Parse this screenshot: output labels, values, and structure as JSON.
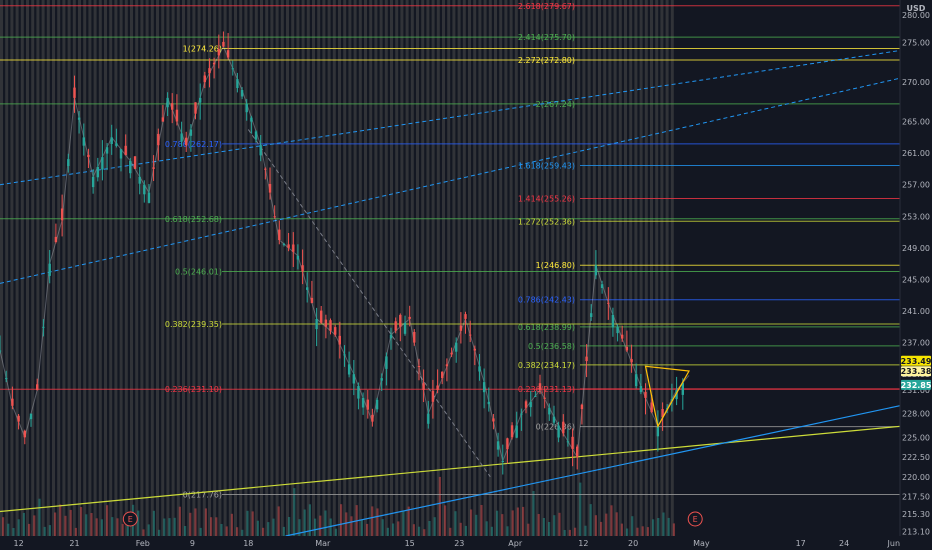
{
  "currency": "USD",
  "corner_label": "280.00",
  "earnings_markers": [
    {
      "label": "E",
      "date": "2024-01-30"
    },
    {
      "label": "E",
      "date": "2024-04-30"
    }
  ],
  "price_badges": [
    {
      "value": "233.49",
      "bg": "#f7e600",
      "fg": "#131722"
    },
    {
      "value": "233.38",
      "bg": "#fff59d",
      "fg": "#131722"
    },
    {
      "value": "232.85",
      "bg": "#26a69a",
      "fg": "#ffffff"
    }
  ],
  "chart_data": {
    "type": "line",
    "title": "",
    "xlabel": "",
    "ylabel": "",
    "currency": "USD",
    "ylim": [
      212.5,
      280.4
    ],
    "xlim": [
      "2024-01-09",
      "2024-06-02"
    ],
    "x_tick_labels": [
      {
        "label": "12",
        "date": "2024-01-12"
      },
      {
        "label": "21",
        "date": "2024-01-21"
      },
      {
        "label": "Feb",
        "date": "2024-02-01"
      },
      {
        "label": "9",
        "date": "2024-02-09"
      },
      {
        "label": "18",
        "date": "2024-02-18"
      },
      {
        "label": "Mar",
        "date": "2024-03-01"
      },
      {
        "label": "15",
        "date": "2024-03-15"
      },
      {
        "label": "23",
        "date": "2024-03-23"
      },
      {
        "label": "Apr",
        "date": "2024-04-01"
      },
      {
        "label": "12",
        "date": "2024-04-12"
      },
      {
        "label": "20",
        "date": "2024-04-20"
      },
      {
        "label": "May",
        "date": "2024-05-01"
      },
      {
        "label": "17",
        "date": "2024-05-17"
      },
      {
        "label": "24",
        "date": "2024-05-24"
      },
      {
        "label": "Jun",
        "date": "2024-06-01"
      }
    ],
    "y_tick_labels": [
      213.1,
      215.3,
      217.5,
      220.0,
      222.5,
      225.0,
      228.0,
      231.0,
      233.0,
      237.0,
      241.0,
      245.0,
      249.0,
      253.0,
      257.0,
      261.0,
      265.0,
      270.0,
      275.0
    ],
    "price_series": {
      "name": "",
      "points": [
        [
          "2024-01-09",
          236.0
        ],
        [
          "2024-01-11",
          229.0
        ],
        [
          "2024-01-13",
          225.0
        ],
        [
          "2024-01-15",
          231.0
        ],
        [
          "2024-01-17",
          247.0
        ],
        [
          "2024-01-19",
          252.5
        ],
        [
          "2024-01-21",
          268.0
        ],
        [
          "2024-01-24",
          258.0
        ],
        [
          "2024-01-27",
          263.0
        ],
        [
          "2024-01-30",
          260.0
        ],
        [
          "2024-02-02",
          256.0
        ],
        [
          "2024-02-05",
          268.0
        ],
        [
          "2024-02-08",
          262.0
        ],
        [
          "2024-02-11",
          270.0
        ],
        [
          "2024-02-14",
          274.5
        ],
        [
          "2024-02-17",
          269.0
        ],
        [
          "2024-02-20",
          262.0
        ],
        [
          "2024-02-23",
          250.0
        ],
        [
          "2024-02-26",
          248.0
        ],
        [
          "2024-02-29",
          240.0
        ],
        [
          "2024-03-03",
          238.0
        ],
        [
          "2024-03-06",
          233.0
        ],
        [
          "2024-03-09",
          227.0
        ],
        [
          "2024-03-12",
          238.0
        ],
        [
          "2024-03-15",
          240.0
        ],
        [
          "2024-03-18",
          228.0
        ],
        [
          "2024-03-21",
          234.0
        ],
        [
          "2024-03-24",
          240.0
        ],
        [
          "2024-03-27",
          232.0
        ],
        [
          "2024-03-30",
          222.0
        ],
        [
          "2024-04-02",
          228.0
        ],
        [
          "2024-04-05",
          231.0
        ],
        [
          "2024-04-08",
          226.5
        ],
        [
          "2024-04-11",
          222.5
        ],
        [
          "2024-04-14",
          246.8
        ],
        [
          "2024-04-16",
          242.0
        ],
        [
          "2024-04-19",
          236.0
        ],
        [
          "2024-04-22",
          230.0
        ],
        [
          "2024-04-24",
          226.4
        ],
        [
          "2024-04-27",
          231.0
        ],
        [
          "2024-04-29",
          232.85
        ]
      ]
    },
    "horizontal_levels": [
      {
        "label": "2.618(279.67)",
        "value": 279.67,
        "color": "#f23645"
      },
      {
        "label": "2.414(275.70)",
        "value": 275.7,
        "color": "#4caf50"
      },
      {
        "label": "1(274.26)",
        "value": 274.26,
        "color": "#ffeb3b"
      },
      {
        "label": "2.272(272.80)",
        "value": 272.8,
        "color": "#ffeb3b"
      },
      {
        "label": "2(267.24)",
        "value": 267.24,
        "color": "#4caf50"
      },
      {
        "label": "0.786(262.17)",
        "value": 262.17,
        "color": "#2962ff"
      },
      {
        "label": "1.618(259.43)",
        "value": 259.43,
        "color": "#2196f3"
      },
      {
        "label": "1.414(255.26)",
        "value": 255.26,
        "color": "#f23645"
      },
      {
        "label": "0.618(252.68)",
        "value": 252.68,
        "color": "#4caf50"
      },
      {
        "label": "1.272(252.36)",
        "value": 252.36,
        "color": "#cddc39"
      },
      {
        "label": "1(246.80)",
        "value": 246.8,
        "color": "#ffeb3b"
      },
      {
        "label": "0.5(246.01)",
        "value": 246.01,
        "color": "#4caf50"
      },
      {
        "label": "0.786(242.43)",
        "value": 242.43,
        "color": "#2962ff"
      },
      {
        "label": "0.618(238.99)",
        "value": 238.99,
        "color": "#4caf50"
      },
      {
        "label": "0.382(239.35)",
        "value": 239.35,
        "color": "#cddc39"
      },
      {
        "label": "0.5(236.58)",
        "value": 236.58,
        "color": "#4caf50"
      },
      {
        "label": "0.382(234.17)",
        "value": 234.17,
        "color": "#cddc39"
      },
      {
        "label": "0.236(231.10)",
        "value": 231.1,
        "color": "#f23645"
      },
      {
        "label": "0.236(231.13)",
        "value": 231.13,
        "color": "#f23645"
      },
      {
        "label": "0(226.36)",
        "value": 226.36,
        "color": "#9e9e9e"
      },
      {
        "label": "0(217.76)",
        "value": 217.76,
        "color": "#9e9e9e"
      }
    ],
    "trendlines": [
      {
        "from": [
          "2024-01-09",
          215.6
        ],
        "to": [
          "2024-06-02",
          226.4
        ],
        "color": "#cddc39",
        "style": "solid"
      },
      {
        "from": [
          "2024-02-24",
          212.5
        ],
        "to": [
          "2024-06-02",
          229.0
        ],
        "color": "#2196f3",
        "style": "solid"
      },
      {
        "from": [
          "2024-01-09",
          257.0
        ],
        "to": [
          "2024-06-02",
          274.0
        ],
        "color": "#2196f3",
        "style": "dashed"
      },
      {
        "from": [
          "2024-01-09",
          244.5
        ],
        "to": [
          "2024-06-02",
          270.5
        ],
        "color": "#2196f3",
        "style": "dashed"
      },
      {
        "from": [
          "2024-02-18",
          264.0
        ],
        "to": [
          "2024-03-28",
          220.0
        ],
        "color": "#787b86",
        "style": "dashed"
      }
    ],
    "triangle_pattern": [
      [
        "2024-04-24",
        226.4
      ],
      [
        "2024-04-29",
        233.4
      ],
      [
        "2024-04-22",
        234.0
      ]
    ],
    "grid": false,
    "legend": "none"
  }
}
